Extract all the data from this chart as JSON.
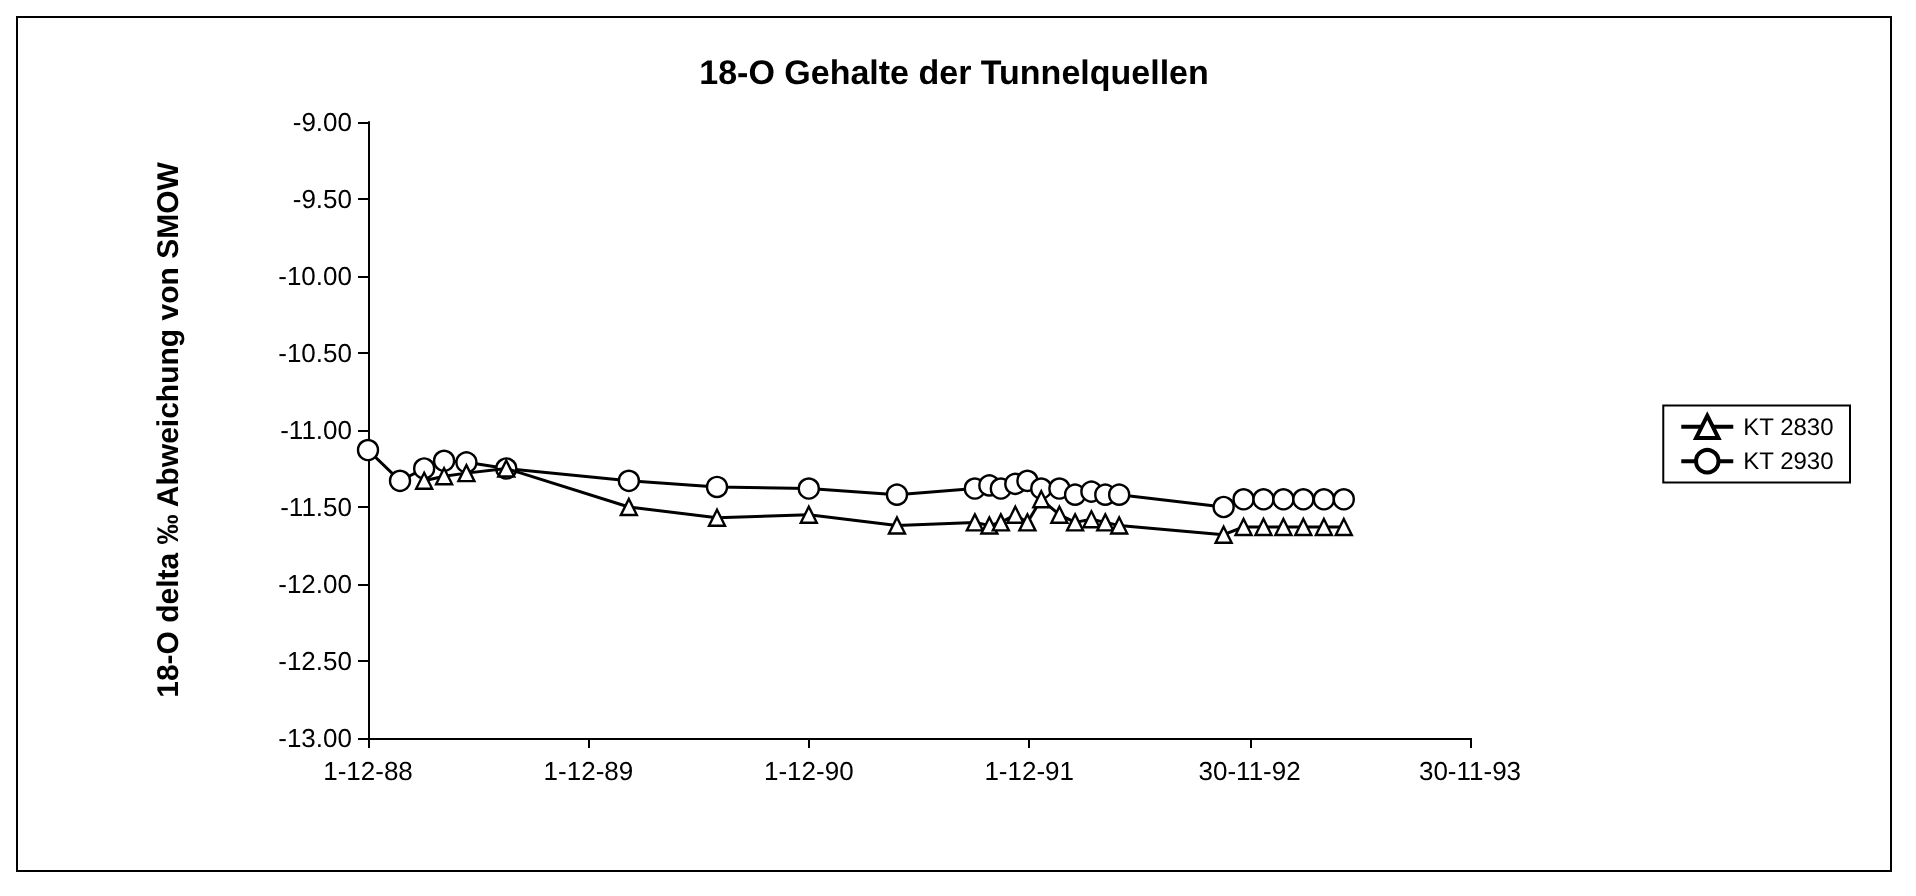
{
  "chart_data": {
    "type": "line",
    "title": "18-O Gehalte der Tunnelquellen",
    "ylabel": "18-O delta ‰ Abweichung von SMOW",
    "series": [
      {
        "name": "KT 2830",
        "color": "#000000",
        "marker": "triangle",
        "x": [
          "1989-03-04",
          "1989-04-06",
          "1989-05-13",
          "1989-07-18",
          "1990-02-06",
          "1990-07-02",
          "1990-12-01",
          "1991-04-26",
          "1991-09-02",
          "1991-09-26",
          "1991-10-15",
          "1991-11-08",
          "1991-11-28",
          "1991-12-21",
          "1992-01-20",
          "1992-02-15",
          "1992-03-13",
          "1992-04-05",
          "1992-04-28",
          "1992-10-18",
          "1992-11-20",
          "1992-12-23",
          "1993-01-25",
          "1993-02-27",
          "1993-04-02",
          "1993-05-05"
        ],
        "values": [
          -11.33,
          -11.3,
          -11.28,
          -11.25,
          -11.5,
          -11.57,
          -11.55,
          -11.62,
          -11.6,
          -11.62,
          -11.6,
          -11.55,
          -11.6,
          -11.45,
          -11.55,
          -11.6,
          -11.58,
          -11.6,
          -11.62,
          -11.68,
          -11.63,
          -11.63,
          -11.63,
          -11.63,
          -11.63,
          -11.63
        ]
      },
      {
        "name": "KT 2930",
        "color": "#000000",
        "marker": "circle",
        "x": [
          "1988-12-01",
          "1989-01-23",
          "1989-03-04",
          "1989-04-06",
          "1989-05-13",
          "1989-07-18",
          "1990-02-06",
          "1990-07-02",
          "1990-12-01",
          "1991-04-26",
          "1991-09-02",
          "1991-09-26",
          "1991-10-15",
          "1991-11-08",
          "1991-11-28",
          "1991-12-21",
          "1992-01-20",
          "1992-02-15",
          "1992-03-13",
          "1992-04-05",
          "1992-04-28",
          "1992-10-18",
          "1992-11-20",
          "1992-12-23",
          "1993-01-25",
          "1993-02-27",
          "1993-04-02",
          "1993-05-05"
        ],
        "values": [
          -11.13,
          -11.33,
          -11.25,
          -11.2,
          -11.21,
          -11.25,
          -11.33,
          -11.37,
          -11.38,
          -11.42,
          -11.38,
          -11.36,
          -11.38,
          -11.35,
          -11.33,
          -11.38,
          -11.38,
          -11.42,
          -11.4,
          -11.42,
          -11.42,
          -11.5,
          -11.45,
          -11.45,
          -11.45,
          -11.45,
          -11.45,
          -11.45
        ]
      }
    ],
    "xlim": [
      "1988-12-01",
      "1993-11-30"
    ],
    "xticks": [
      {
        "value": "1988-12-01",
        "label": "1-12-88"
      },
      {
        "value": "1989-12-01",
        "label": "1-12-89"
      },
      {
        "value": "1990-12-01",
        "label": "1-12-90"
      },
      {
        "value": "1991-12-01",
        "label": "1-12-91"
      },
      {
        "value": "1992-11-30",
        "label": "30-11-92"
      },
      {
        "value": "1993-11-30",
        "label": "30-11-93"
      }
    ],
    "ylim": [
      -13,
      -9
    ],
    "yticks": [
      {
        "value": -13,
        "label": "-13.00"
      },
      {
        "value": -12.5,
        "label": "-12.50"
      },
      {
        "value": -12,
        "label": "-12.00"
      },
      {
        "value": -11.5,
        "label": "-11.50"
      },
      {
        "value": -11,
        "label": "-11.00"
      },
      {
        "value": -10.5,
        "label": "-10.50"
      },
      {
        "value": -10,
        "label": "-10.00"
      },
      {
        "value": -9.5,
        "label": "-9.50"
      },
      {
        "value": -9,
        "label": "-9.00"
      }
    ],
    "grid": false,
    "legend": "right",
    "line_style": "solid"
  }
}
